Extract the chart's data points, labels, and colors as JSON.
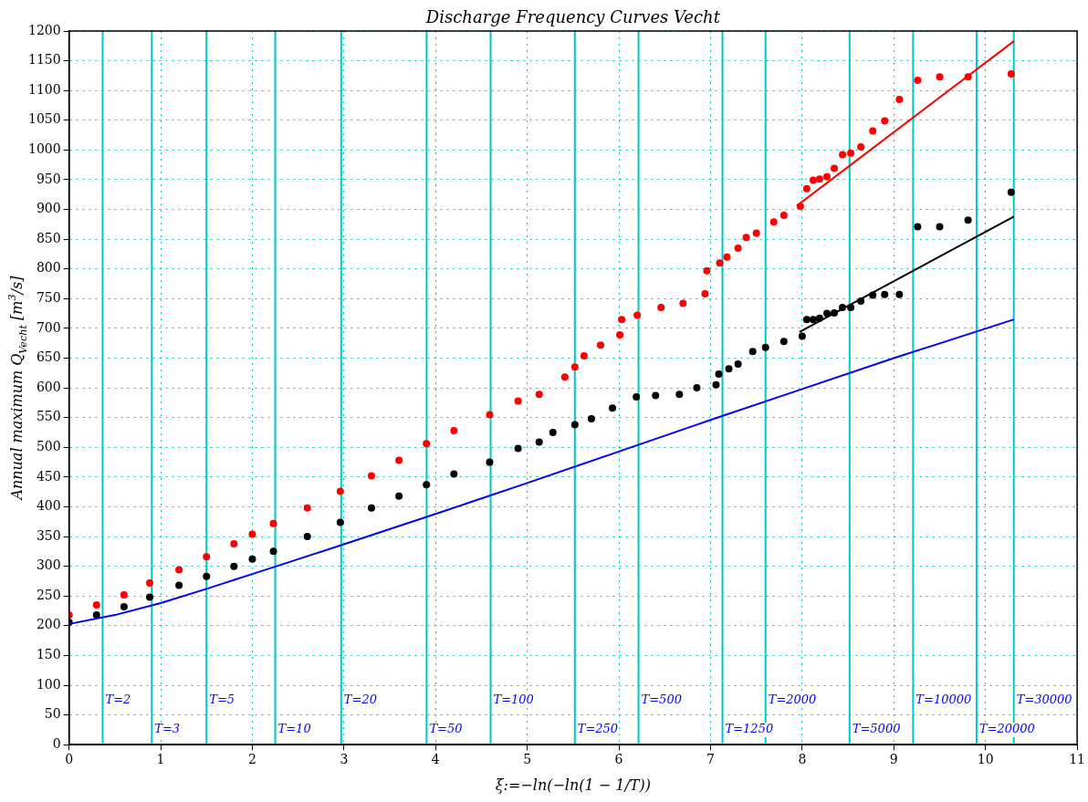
{
  "chart_data": {
    "type": "scatter",
    "title": "Discharge Frequency Curves Vecht",
    "xlabel": "ξ:=−ln(−ln(1 − 1/T))",
    "ylabel": "Annual maximum Q$_{Vecht}$ [m$^{3}$/s]",
    "xlim": [
      0,
      11
    ],
    "xticks": [
      0,
      1,
      2,
      3,
      4,
      5,
      6,
      7,
      8,
      9,
      10,
      11
    ],
    "ylim": [
      0,
      1200
    ],
    "yticks": [
      0,
      50,
      100,
      150,
      200,
      250,
      300,
      350,
      400,
      450,
      500,
      550,
      600,
      650,
      700,
      750,
      800,
      850,
      900,
      950,
      1000,
      1050,
      1100,
      1150,
      1200
    ],
    "grid": true,
    "legend": false,
    "series": [
      {
        "type": "scatter",
        "marker": "circle",
        "color": "#ff0000",
        "x": [
          0,
          0.3,
          0.6,
          0.88,
          1.2,
          1.5,
          1.8,
          2.0,
          2.23,
          2.6,
          2.96,
          3.3,
          3.6,
          3.9,
          4.2,
          4.59,
          4.9,
          5.13,
          5.41,
          5.52,
          5.62,
          5.8,
          6.01,
          6.03,
          6.2,
          6.46,
          6.7,
          6.94,
          6.96,
          7.1,
          7.18,
          7.3,
          7.39,
          7.5,
          7.69,
          7.8,
          7.98,
          8.05,
          8.12,
          8.19,
          8.27,
          8.35,
          8.44,
          8.53,
          8.64,
          8.77,
          8.9,
          9.06,
          9.26,
          9.5,
          9.81,
          10.28
        ],
        "values": [
          218,
          235,
          252,
          272,
          294,
          316,
          338,
          354,
          372,
          398,
          426,
          452,
          478,
          506,
          528,
          555,
          578,
          589,
          618,
          635,
          654,
          672,
          689,
          715,
          722,
          735,
          742,
          758,
          797,
          810,
          820,
          835,
          853,
          860,
          879,
          890,
          905,
          935,
          949,
          951,
          955,
          969,
          992,
          995,
          1005,
          1032,
          1049,
          1085,
          1117,
          1123,
          1123,
          1128
        ]
      },
      {
        "type": "scatter",
        "marker": "circle",
        "color": "#000000",
        "x": [
          0,
          0.3,
          0.6,
          0.88,
          1.2,
          1.5,
          1.8,
          2.0,
          2.23,
          2.6,
          2.96,
          3.3,
          3.6,
          3.9,
          4.2,
          4.59,
          4.9,
          5.13,
          5.28,
          5.52,
          5.7,
          5.93,
          6.19,
          6.4,
          6.66,
          6.85,
          7.06,
          7.09,
          7.2,
          7.3,
          7.46,
          7.6,
          7.8,
          8.0,
          8.05,
          8.12,
          8.19,
          8.27,
          8.35,
          8.44,
          8.53,
          8.64,
          8.77,
          8.9,
          9.06,
          9.26,
          9.5,
          9.81,
          10.28
        ],
        "values": [
          206,
          218,
          232,
          248,
          268,
          283,
          300,
          312,
          325,
          350,
          374,
          398,
          418,
          437,
          455,
          475,
          498,
          509,
          525,
          538,
          548,
          566,
          585,
          587,
          589,
          600,
          605,
          623,
          632,
          640,
          661,
          668,
          678,
          687,
          715,
          715,
          717,
          725,
          726,
          735,
          735,
          746,
          756,
          757,
          757,
          871,
          871,
          882,
          929
        ]
      },
      {
        "type": "line",
        "marker": "none",
        "color": "#ff0000",
        "x": [
          7.94,
          10.31
        ],
        "values": [
          906,
          1183
        ]
      },
      {
        "type": "line",
        "marker": "none",
        "color": "#000000",
        "x": [
          7.97,
          10.31
        ],
        "values": [
          694,
          888
        ]
      },
      {
        "type": "line",
        "marker": "none",
        "color": "#0000ff",
        "x": [
          0,
          0.5,
          1,
          1.5,
          2,
          2.5,
          3,
          4,
          5,
          6,
          7,
          8,
          9,
          10.31
        ],
        "values": [
          203,
          218,
          238,
          262,
          287,
          312,
          337,
          388,
          440,
          493,
          546,
          598,
          650,
          715
        ]
      }
    ],
    "ref_lines": [
      {
        "axis": "x",
        "value": 0.367,
        "color": "#00c8c8"
      },
      {
        "axis": "x",
        "value": 0.903,
        "color": "#00c8c8"
      },
      {
        "axis": "x",
        "value": 1.5,
        "color": "#00c8c8"
      },
      {
        "axis": "x",
        "value": 2.25,
        "color": "#00c8c8"
      },
      {
        "axis": "x",
        "value": 2.97,
        "color": "#00c8c8"
      },
      {
        "axis": "x",
        "value": 3.902,
        "color": "#00c8c8"
      },
      {
        "axis": "x",
        "value": 4.6,
        "color": "#00c8c8"
      },
      {
        "axis": "x",
        "value": 5.519,
        "color": "#00c8c8"
      },
      {
        "axis": "x",
        "value": 6.214,
        "color": "#00c8c8"
      },
      {
        "axis": "x",
        "value": 7.13,
        "color": "#00c8c8"
      },
      {
        "axis": "x",
        "value": 7.6,
        "color": "#00c8c8"
      },
      {
        "axis": "x",
        "value": 8.517,
        "color": "#00c8c8"
      },
      {
        "axis": "x",
        "value": 9.21,
        "color": "#00c8c8"
      },
      {
        "axis": "x",
        "value": 9.903,
        "color": "#00c8c8"
      },
      {
        "axis": "x",
        "value": 10.309,
        "color": "#00c8c8"
      }
    ],
    "annotations": [
      {
        "text": "T=2",
        "x": 0.367,
        "y": 75
      },
      {
        "text": "T=3",
        "x": 0.903,
        "y": 25
      },
      {
        "text": "T=5",
        "x": 1.5,
        "y": 75
      },
      {
        "text": "T=10",
        "x": 2.25,
        "y": 25
      },
      {
        "text": "T=20",
        "x": 2.97,
        "y": 75
      },
      {
        "text": "T=50",
        "x": 3.902,
        "y": 25
      },
      {
        "text": "T=100",
        "x": 4.6,
        "y": 75
      },
      {
        "text": "T=250",
        "x": 5.519,
        "y": 25
      },
      {
        "text": "T=500",
        "x": 6.214,
        "y": 75
      },
      {
        "text": "T=1250",
        "x": 7.13,
        "y": 25
      },
      {
        "text": "T=2000",
        "x": 7.6,
        "y": 75
      },
      {
        "text": "T=5000",
        "x": 8.517,
        "y": 25
      },
      {
        "text": "T=10000",
        "x": 9.21,
        "y": 75
      },
      {
        "text": "T=20000",
        "x": 9.903,
        "y": 25
      },
      {
        "text": "T=30000",
        "x": 10.309,
        "y": 75
      }
    ]
  }
}
